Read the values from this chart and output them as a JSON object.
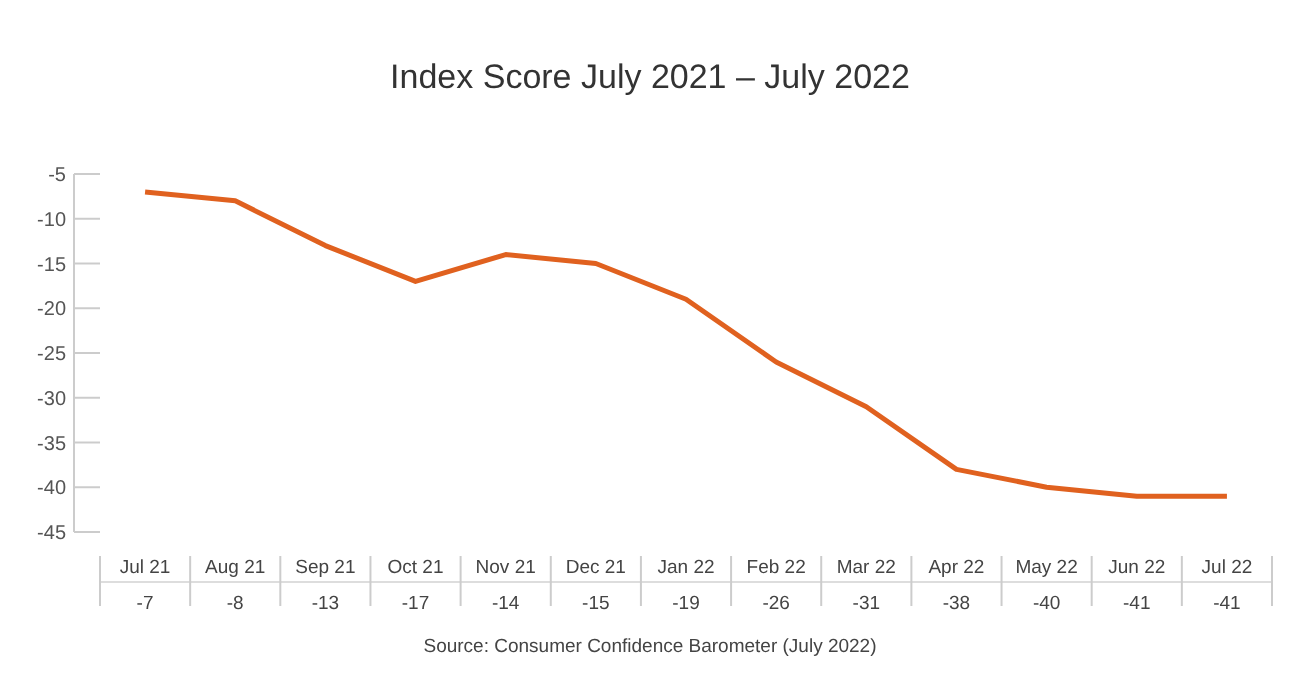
{
  "chart_data": {
    "type": "line",
    "title": "Index Score July 2021 – July 2022",
    "categories": [
      "Jul 21",
      "Aug 21",
      "Sep 21",
      "Oct 21",
      "Nov 21",
      "Dec 21",
      "Jan 22",
      "Feb 22",
      "Mar 22",
      "Apr 22",
      "May 22",
      "Jun 22",
      "Jul 22"
    ],
    "series": [
      {
        "color": "#e0611f",
        "values": [
          -7,
          -8,
          -13,
          -17,
          -14,
          -15,
          -19,
          -26,
          -31,
          -38,
          -40,
          -41,
          -41
        ]
      }
    ],
    "ylim": [
      -45,
      -5
    ],
    "yticks": [
      -5,
      -10,
      -15,
      -20,
      -25,
      -30,
      -35,
      -40,
      -45
    ],
    "grid": false,
    "data_labels": true,
    "annotations": [
      "Source: Consumer Confidence Barometer (July 2022)"
    ]
  }
}
